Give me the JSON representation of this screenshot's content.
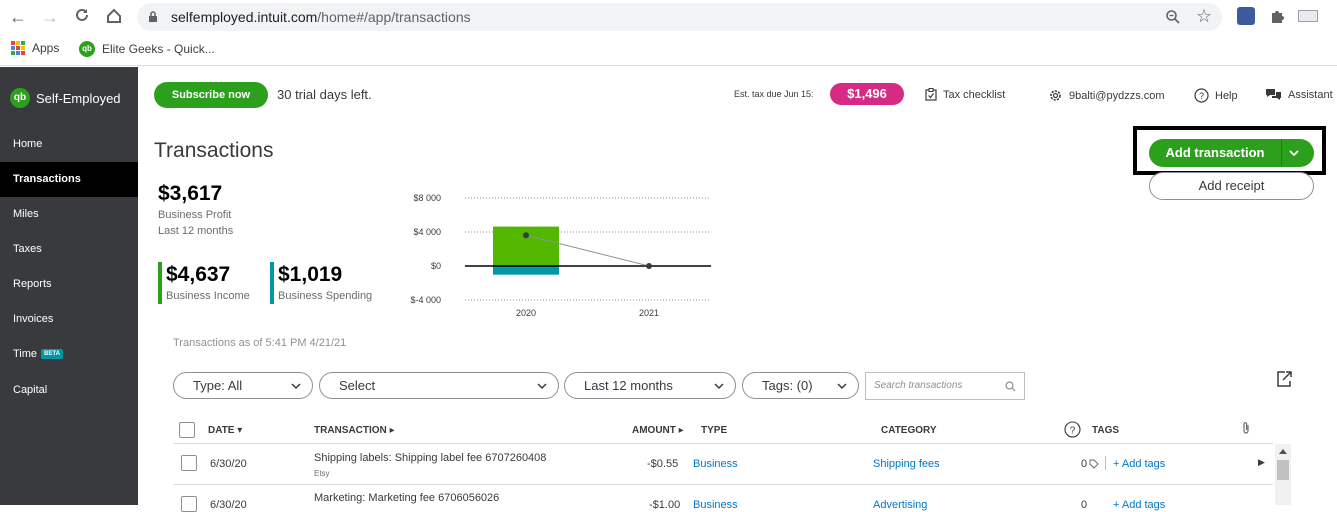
{
  "browser": {
    "url_host": "selfemployed.intuit.com",
    "url_path": "/home#/app/transactions",
    "bookmarks": [
      {
        "label": "Apps",
        "icon": "apps-grid-icon"
      },
      {
        "label": "Elite Geeks - Quick...",
        "icon": "quickbooks-icon"
      }
    ]
  },
  "sidebar": {
    "brand": "Self-Employed",
    "items": [
      {
        "label": "Home"
      },
      {
        "label": "Transactions",
        "active": true
      },
      {
        "label": "Miles"
      },
      {
        "label": "Taxes"
      },
      {
        "label": "Reports"
      },
      {
        "label": "Invoices"
      },
      {
        "label": "Time",
        "badge": "BETA"
      },
      {
        "label": "Capital"
      }
    ]
  },
  "header": {
    "subscribe": "Subscribe now",
    "trial": "30 trial days left.",
    "est_tax_label": "Est. tax due Jun 15:",
    "est_tax_value": "$1,496",
    "tax_checklist": "Tax checklist",
    "account": "9balti@pydzzs.com",
    "help": "Help",
    "assistant": "Assistant"
  },
  "page": {
    "title": "Transactions",
    "add_transaction": "Add transaction",
    "add_receipt": "Add receipt",
    "as_of": "Transactions as of 5:41 PM 4/21/21"
  },
  "summary": {
    "profit_value": "$3,617",
    "profit_label": "Business Profit",
    "profit_period": "Last 12 months",
    "income_value": "$4,637",
    "income_label": "Business Income",
    "spending_value": "$1,019",
    "spending_label": "Business Spending"
  },
  "chart_data": {
    "type": "bar",
    "categories": [
      "2020",
      "2021"
    ],
    "series": [
      {
        "name": "Business Income",
        "values": [
          4637,
          0
        ],
        "color": "#53b700"
      },
      {
        "name": "Business Spending",
        "values": [
          -1019,
          0
        ],
        "color": "#0097a7"
      },
      {
        "name": "Business Profit",
        "values": [
          3617,
          0
        ],
        "kind": "line"
      }
    ],
    "y_ticks": [
      "$8 000",
      "$4 000",
      "$0",
      "$-4 000"
    ],
    "ylim": [
      -4000,
      8000
    ],
    "grid": true
  },
  "filters": {
    "type": "Type: All",
    "select": "Select",
    "period": "Last 12 months",
    "tags": "Tags: (0)",
    "search_placeholder": "Search transactions"
  },
  "table": {
    "headers": {
      "date": "DATE",
      "transaction": "TRANSACTION",
      "amount": "AMOUNT",
      "type": "TYPE",
      "category": "CATEGORY",
      "tags": "TAGS"
    },
    "rows": [
      {
        "date": "6/30/20",
        "transaction": "Shipping labels: Shipping label fee 6707260408",
        "source": "Etsy",
        "amount": "-$0.55",
        "type": "Business",
        "category": "Shipping fees",
        "tag_count": "0",
        "add_tags": "+ Add tags"
      },
      {
        "date": "6/30/20",
        "transaction": "Marketing: Marketing fee 6706056026",
        "source": "",
        "amount": "-$1.00",
        "type": "Business",
        "category": "Advertising",
        "tag_count": "0",
        "add_tags": "+ Add tags"
      }
    ]
  },
  "colors": {
    "brand_green": "#2ca01c",
    "sidebar_bg": "#393a3d",
    "tax_pill": "#d52b84",
    "link": "#0077c5"
  }
}
